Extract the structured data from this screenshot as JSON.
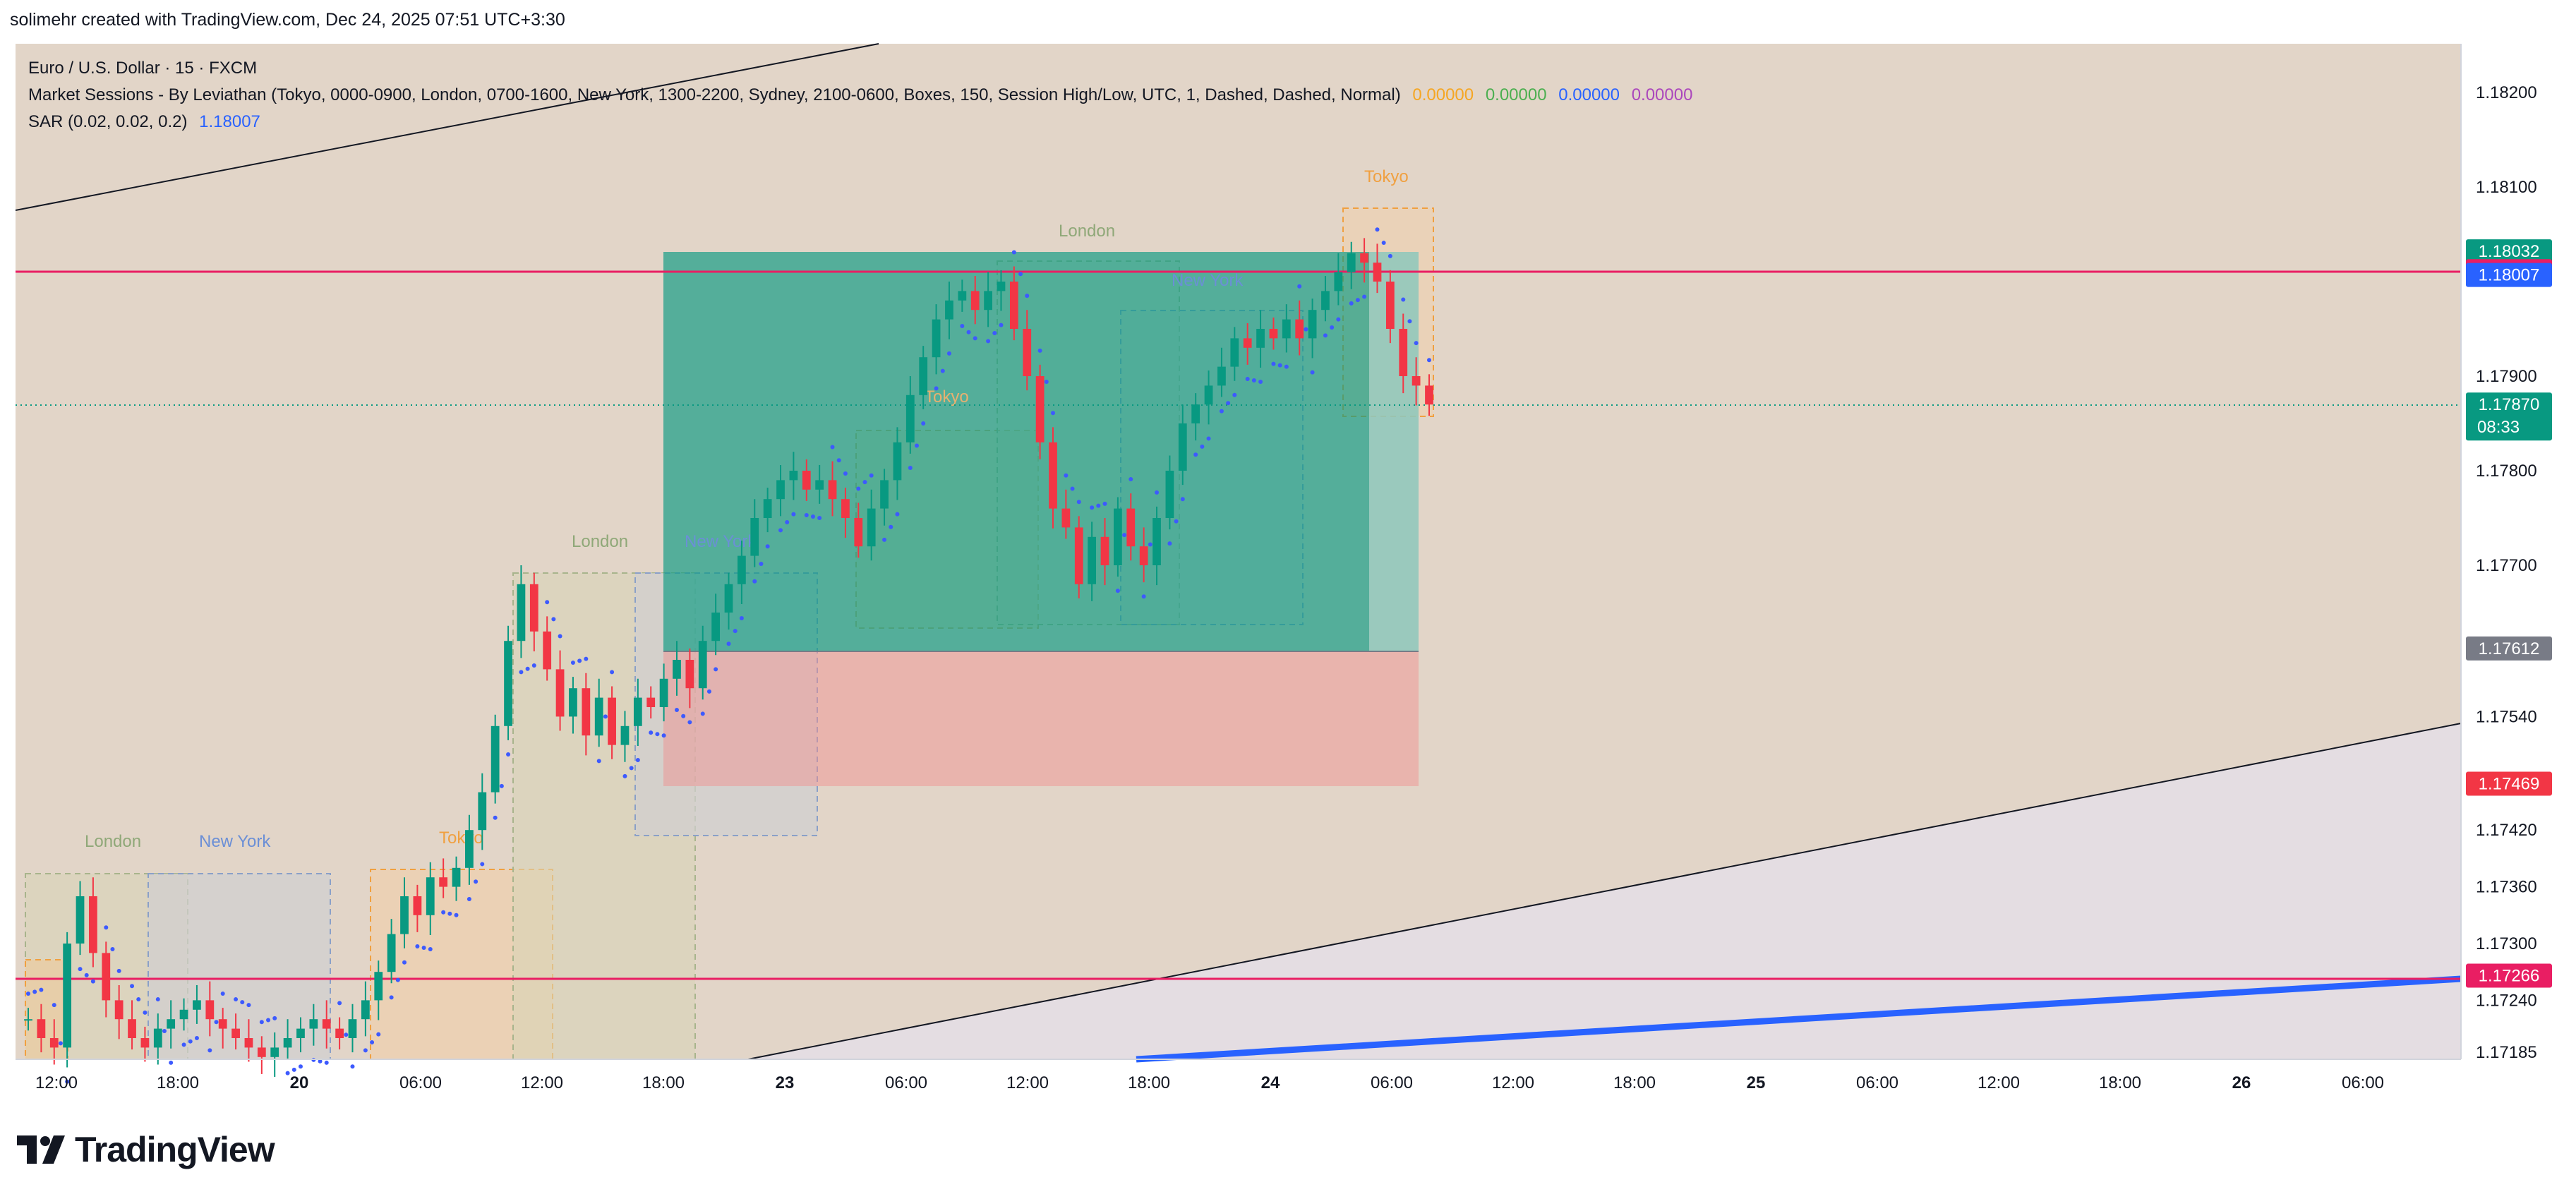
{
  "header": {
    "created_by": "solimehr created with TradingView.com, Dec 24, 2025 07:51 UTC+3:30"
  },
  "legend": {
    "symbol": "Euro / U.S. Dollar · 15 · FXCM",
    "indicator1": "Market Sessions - By Leviathan (Tokyo, 0000-0900, London, 0700-1600, New York, 1300-2200, Sydney, 2100-0600, Boxes, 150, Session High/Low, UTC, 1, Dashed, Dashed, Normal)",
    "indicator1_values": [
      "0.00000",
      "0.00000",
      "0.00000",
      "0.00000"
    ],
    "indicator1_colors": [
      "#f5a623",
      "#4caf50",
      "#2962ff",
      "#ab47bc"
    ],
    "indicator2": "SAR (0.02, 0.02, 0.2)",
    "indicator2_value": "1.18007"
  },
  "brand": {
    "name": "TradingView"
  },
  "colors": {
    "background": "#e2d5c8",
    "bull": "#089981",
    "bear": "#f23645",
    "sar": "#3d5afe",
    "redline": "#e91e63",
    "blueline": "#2962ff"
  },
  "chart_data": {
    "type": "candlestick",
    "title": "Euro / U.S. Dollar · 15 · FXCM",
    "y_axis_ticks": [
      "1.18200",
      "1.18100",
      "1.17900",
      "1.17800",
      "1.17700",
      "1.17540",
      "1.17420",
      "1.17360",
      "1.17300",
      "1.17240",
      "1.17185"
    ],
    "x_axis_ticks": [
      "12:00",
      "18:00",
      "20",
      "06:00",
      "12:00",
      "18:00",
      "23",
      "06:00",
      "12:00",
      "18:00",
      "24",
      "06:00",
      "12:00",
      "18:00",
      "25",
      "06:00",
      "12:00",
      "18:00",
      "26",
      "06:00"
    ],
    "price_labels": [
      {
        "value": "1.18032",
        "color": "#089981"
      },
      {
        "value": "1.18011",
        "color": "#e91e63"
      },
      {
        "value": "1.18007",
        "color": "#2962ff"
      },
      {
        "value": "1.17870",
        "color": "#089981",
        "sub": "08:33"
      },
      {
        "value": "1.17612",
        "color": "#787b86"
      },
      {
        "value": "1.17469",
        "color": "#f23645"
      },
      {
        "value": "1.17266",
        "color": "#e91e63"
      }
    ],
    "horizontal_lines": [
      1.18011,
      1.17266
    ],
    "last_price": 1.1787,
    "position": {
      "type": "long",
      "entry": 1.17612,
      "target": 1.18032,
      "stop": 1.17469
    },
    "sessions": [
      {
        "name": "London",
        "color": "#8fa878"
      },
      {
        "name": "New York",
        "color": "#6b8fd6"
      },
      {
        "name": "Tokyo",
        "color": "#f0a040"
      },
      {
        "name": "London",
        "color": "#8fa878"
      },
      {
        "name": "New York",
        "color": "#6b8fd6"
      },
      {
        "name": "Tokyo",
        "color": "#e8b070"
      },
      {
        "name": "London",
        "color": "#8fa878"
      },
      {
        "name": "New York",
        "color": "#6b8fd6"
      },
      {
        "name": "Tokyo",
        "color": "#f0a040"
      }
    ],
    "series": [
      {
        "name": "EURUSD",
        "close": [
          1.1722,
          1.172,
          1.1719,
          1.173,
          1.1735,
          1.1729,
          1.1724,
          1.1722,
          1.172,
          1.1719,
          1.1721,
          1.1722,
          1.1723,
          1.1724,
          1.1722,
          1.1721,
          1.172,
          1.1719,
          1.1718,
          1.1719,
          1.172,
          1.1721,
          1.1722,
          1.1721,
          1.172,
          1.1722,
          1.1724,
          1.1727,
          1.1731,
          1.1735,
          1.1733,
          1.1737,
          1.1736,
          1.1738,
          1.1742,
          1.1746,
          1.1753,
          1.1762,
          1.1768,
          1.1763,
          1.1759,
          1.1754,
          1.1757,
          1.1752,
          1.1756,
          1.1751,
          1.1753,
          1.1756,
          1.1755,
          1.1758,
          1.176,
          1.1757,
          1.1762,
          1.1765,
          1.1768,
          1.1771,
          1.1775,
          1.1777,
          1.1779,
          1.178,
          1.1778,
          1.1779,
          1.1777,
          1.1775,
          1.1772,
          1.1776,
          1.1779,
          1.1783,
          1.1788,
          1.1792,
          1.1796,
          1.1798,
          1.1799,
          1.1797,
          1.1799,
          1.18,
          1.1795,
          1.179,
          1.1783,
          1.1776,
          1.1774,
          1.1768,
          1.1773,
          1.177,
          1.1776,
          1.1772,
          1.177,
          1.1775,
          1.178,
          1.1785,
          1.1787,
          1.1789,
          1.1791,
          1.1794,
          1.1793,
          1.1795,
          1.1794,
          1.1796,
          1.1794,
          1.1797,
          1.1799,
          1.1801,
          1.1803,
          1.1802,
          1.18,
          1.1795,
          1.179,
          1.1789,
          1.1787
        ]
      }
    ]
  }
}
